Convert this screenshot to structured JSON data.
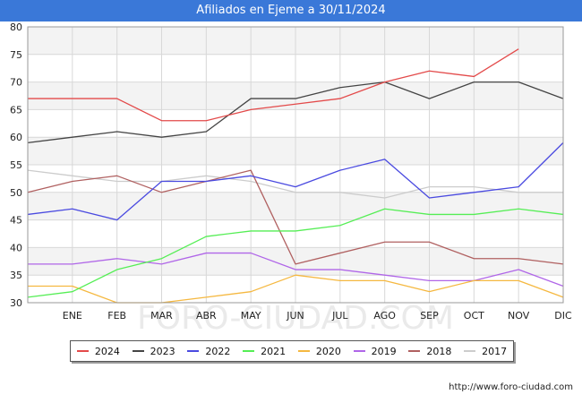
{
  "chart_data": {
    "type": "line",
    "title": "Afiliados en Ejeme a 30/11/2024",
    "categories": [
      "",
      "ENE",
      "FEB",
      "MAR",
      "ABR",
      "MAY",
      "JUN",
      "JUL",
      "AGO",
      "SEP",
      "OCT",
      "NOV",
      "DIC"
    ],
    "ylim": [
      30,
      80
    ],
    "yticks": [
      30,
      35,
      40,
      45,
      50,
      55,
      60,
      65,
      70,
      75,
      80
    ],
    "grid": true,
    "legend_position": "bottom",
    "watermark": "FORO-CIUDAD.COM",
    "series": [
      {
        "name": "2024",
        "color": "#e34a4a",
        "values": [
          67,
          67,
          67,
          63,
          63,
          65,
          66,
          67,
          70,
          72,
          71,
          76,
          null
        ]
      },
      {
        "name": "2023",
        "color": "#444444",
        "values": [
          59,
          60,
          61,
          60,
          61,
          67,
          67,
          69,
          70,
          67,
          70,
          70,
          67
        ]
      },
      {
        "name": "2022",
        "color": "#4a4ae0",
        "values": [
          46,
          47,
          45,
          52,
          52,
          53,
          51,
          54,
          56,
          49,
          50,
          51,
          59
        ]
      },
      {
        "name": "2021",
        "color": "#55ee55",
        "values": [
          31,
          32,
          36,
          38,
          42,
          43,
          43,
          44,
          47,
          46,
          46,
          47,
          46
        ]
      },
      {
        "name": "2020",
        "color": "#f5b840",
        "values": [
          33,
          33,
          30,
          30,
          31,
          32,
          35,
          34,
          34,
          32,
          34,
          34,
          31
        ]
      },
      {
        "name": "2019",
        "color": "#b066e8",
        "values": [
          37,
          37,
          38,
          37,
          39,
          39,
          36,
          36,
          35,
          34,
          34,
          36,
          33
        ]
      },
      {
        "name": "2018",
        "color": "#b06060",
        "values": [
          50,
          52,
          53,
          50,
          52,
          54,
          37,
          39,
          41,
          41,
          38,
          38,
          37
        ]
      },
      {
        "name": "2017",
        "color": "#cccccc",
        "values": [
          54,
          53,
          52,
          52,
          53,
          52,
          50,
          50,
          49,
          51,
          51,
          50,
          50
        ]
      }
    ]
  },
  "footer": {
    "url": "http://www.foro-ciudad.com"
  }
}
